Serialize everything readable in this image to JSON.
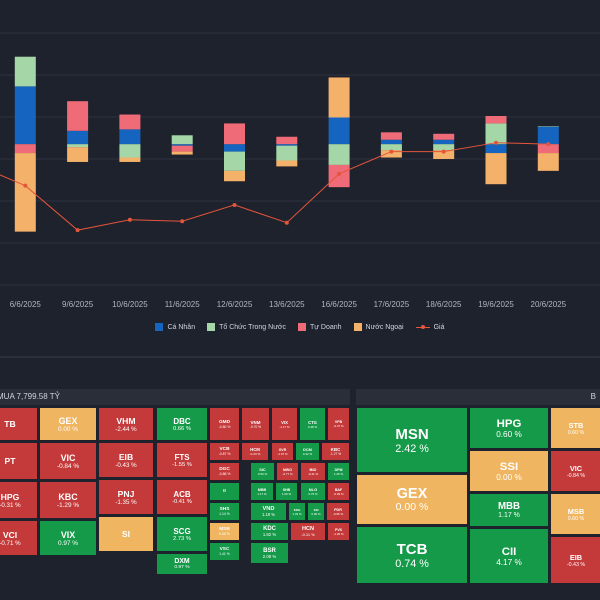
{
  "colors": {
    "ca_nhan": "#1565c0",
    "to_chuc": "#a5d6a7",
    "tu_doanh": "#f06b78",
    "nuoc_ngoai": "#f4b16a",
    "gia": "#e4553a",
    "up": "#159a49",
    "down": "#c43a3a",
    "flat": "#efb560"
  },
  "chart_data": {
    "type": "bar",
    "stacked": true,
    "categories": [
      "6/6/2025",
      "6/6/2025",
      "9/6/2025",
      "10/6/2025",
      "11/6/2025",
      "12/6/2025",
      "13/6/2025",
      "16/6/2025",
      "17/6/2025",
      "18/6/2025",
      "19/6/2025",
      "20/6/2025"
    ],
    "series": [
      {
        "name": "Cá Nhân",
        "color": "#1565c0",
        "values": [
          5,
          39,
          9,
          10,
          -1,
          -5,
          -1,
          18,
          3,
          3,
          -6,
          12
        ]
      },
      {
        "name": "Tổ Chức Trong Nước",
        "color": "#a5d6a7",
        "values": [
          10,
          20,
          -2,
          -9,
          6,
          -13,
          -10,
          -14,
          -4,
          -4,
          14,
          0
        ]
      },
      {
        "name": "Tự Doanh",
        "color": "#f06b78",
        "values": [
          -4,
          -6,
          20,
          10,
          -4,
          14,
          5,
          -15,
          5,
          4,
          5,
          -6
        ]
      },
      {
        "name": "Nước Ngoại",
        "color": "#f4b16a",
        "values": [
          -11,
          -53,
          -10,
          -3,
          -2,
          -7,
          -4,
          27,
          -5,
          -6,
          -21,
          -12
        ]
      }
    ],
    "price": {
      "name": "Giá",
      "color": "#e4553a",
      "values": [
        -13,
        -28,
        -58,
        -51,
        -52,
        -41,
        -53,
        -20,
        -5,
        -5,
        1,
        0
      ]
    },
    "ylim": [
      -95,
      75
    ],
    "grid": true,
    "legend": "bottom"
  },
  "legend": [
    {
      "label": "Cá Nhân"
    },
    {
      "label": "Tổ Chức Trong Nước"
    },
    {
      "label": "Tự Doanh"
    },
    {
      "label": "Nước Ngoại"
    },
    {
      "label": "Giá"
    }
  ],
  "buy_panel": {
    "title": "MUA 7,799.58 TỶ",
    "tiles": [
      {
        "ticker": "TB",
        "pct": "",
        "c": "r"
      },
      {
        "ticker": "GEX",
        "pct": "0.00 %",
        "c": "y"
      },
      {
        "ticker": "VHM",
        "pct": "-2.44 %",
        "c": "r"
      },
      {
        "ticker": "DBC",
        "pct": "0.66 %",
        "c": "g"
      },
      {
        "ticker": "GMD",
        "pct": "-0.80 %",
        "c": "r"
      },
      {
        "ticker": "VNM",
        "pct": "-0.70 %",
        "c": "r"
      },
      {
        "ticker": "VIX",
        "pct": "-1.17 %",
        "c": "r"
      },
      {
        "ticker": "CTG",
        "pct": "0.48 %",
        "c": "g"
      },
      {
        "ticker": "VPB",
        "pct": "-0.47 %",
        "c": "r"
      },
      {
        "ticker": "PT",
        "pct": "",
        "c": "r"
      },
      {
        "ticker": "VIC",
        "pct": "-0.84 %",
        "c": "r"
      },
      {
        "ticker": "EIB",
        "pct": "-0.43 %",
        "c": "r"
      },
      {
        "ticker": "FTS",
        "pct": "-1.55 %",
        "c": "r"
      },
      {
        "ticker": "VCB",
        "pct": "-0.87 %",
        "c": "r"
      },
      {
        "ticker": "HCM",
        "pct": "-0.43 %",
        "c": "r"
      },
      {
        "ticker": "GVR",
        "pct": "-1.07 %",
        "c": "r"
      },
      {
        "ticker": "DCM",
        "pct": "0.42 %",
        "c": "g"
      },
      {
        "ticker": "KBC",
        "pct": "-1.27 %",
        "c": "r"
      },
      {
        "ticker": "ACB",
        "pct": "-0.41 %",
        "c": "r"
      },
      {
        "ticker": "DGC",
        "pct": "-0.88 %",
        "c": "r"
      },
      {
        "ticker": "SIC",
        "pct": "0.50 %",
        "c": "g"
      },
      {
        "ticker": "MWG",
        "pct": "-0.77 %",
        "c": "r"
      },
      {
        "ticker": "BID",
        "pct": "-0.41 %",
        "c": "r"
      },
      {
        "ticker": "DPM",
        "pct": "1.26 %",
        "c": "g"
      },
      {
        "ticker": "PNJ",
        "pct": "-1.35 %",
        "c": "r"
      },
      {
        "ticker": "II",
        "pct": "",
        "c": "g"
      },
      {
        "ticker": "MBB",
        "pct": "1.17 %",
        "c": "g"
      },
      {
        "ticker": "SHB",
        "pct": "1.09 %",
        "c": "g"
      },
      {
        "ticker": "NLG",
        "pct": "0.79 %",
        "c": "g"
      },
      {
        "ticker": "BAF",
        "pct": "-0.93 %",
        "c": "r"
      },
      {
        "ticker": "HPG",
        "pct": "-0.31 %",
        "c": "r"
      },
      {
        "ticker": "KBC",
        "pct": "-1.29 %",
        "c": "r"
      },
      {
        "ticker": "SCG",
        "pct": "2.73 %",
        "c": "g"
      },
      {
        "ticker": "SHS",
        "pct": "1.14 %",
        "c": "g"
      },
      {
        "ticker": "VND",
        "pct": "1.18 %",
        "c": "g"
      },
      {
        "ticker": "KDH",
        "pct": "1.33 %",
        "c": "g"
      },
      {
        "ticker": "SSI",
        "pct": "0.00 %",
        "c": "g"
      },
      {
        "ticker": "PDR",
        "pct": "-0.95 %",
        "c": "r"
      },
      {
        "ticker": "SI",
        "pct": "",
        "c": "y"
      },
      {
        "ticker": "MSB",
        "pct": "0.00 %",
        "c": "y"
      },
      {
        "ticker": "KDC",
        "pct": "1.82 %",
        "c": "g"
      },
      {
        "ticker": "HCN",
        "pct": "-0.11 %",
        "c": "r"
      },
      {
        "ticker": "PVS",
        "pct": "-1.26 %",
        "c": "r"
      },
      {
        "ticker": "VCI",
        "pct": "-0.71 %",
        "c": "r"
      },
      {
        "ticker": "VIX",
        "pct": "0.97 %",
        "c": "g"
      },
      {
        "ticker": "DXM",
        "pct": "0.97 %",
        "c": "g"
      },
      {
        "ticker": "VSC",
        "pct": "1.41 %",
        "c": "g"
      },
      {
        "ticker": "BSR",
        "pct": "2.08 %",
        "c": "g"
      }
    ]
  },
  "sell_panel": {
    "title": "B",
    "tiles": [
      {
        "ticker": "MSN",
        "pct": "2.42 %",
        "c": "g"
      },
      {
        "ticker": "HPG",
        "pct": "0.60 %",
        "c": "g"
      },
      {
        "ticker": "STB",
        "pct": "0.60 %",
        "c": "y"
      },
      {
        "ticker": "SSI",
        "pct": "0.00 %",
        "c": "y"
      },
      {
        "ticker": "VIC",
        "pct": "-0.84 %",
        "c": "r"
      },
      {
        "ticker": "GEX",
        "pct": "0.00 %",
        "c": "y"
      },
      {
        "ticker": "MBB",
        "pct": "1.17 %",
        "c": "g"
      },
      {
        "ticker": "MSB",
        "pct": "0.60 %",
        "c": "y"
      },
      {
        "ticker": "TCB",
        "pct": "0.74 %",
        "c": "g"
      },
      {
        "ticker": "CII",
        "pct": "4.17 %",
        "c": "g"
      },
      {
        "ticker": "EIB",
        "pct": "-0.43 %",
        "c": "r"
      }
    ]
  }
}
